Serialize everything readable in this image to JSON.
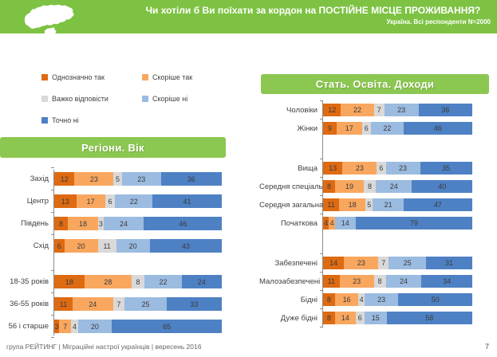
{
  "header": {
    "title": "Чи хотіли б Ви поїхати за кордон на ПОСТІЙНЕ МІСЦЕ ПРОЖИВАННЯ?",
    "subtitle": "Україна. Всі респонденти N=2000"
  },
  "colors": {
    "header_green": "#7DC242",
    "section_green": "#8CC751",
    "series": [
      "#DE6A12",
      "#F9A75F",
      "#D9D9D9",
      "#9BBBE0",
      "#4E81C4"
    ]
  },
  "legend": {
    "keys": [
      "definitely-yes",
      "rather-yes",
      "hard-to-say",
      "rather-no",
      "definitely-no"
    ],
    "items": [
      {
        "label": "Однозначно так"
      },
      {
        "label": "Скоріше так"
      },
      {
        "label": "Важко відповісти"
      },
      {
        "label": "Скоріше ні"
      },
      {
        "label": "Точно ні"
      }
    ]
  },
  "sections": {
    "left": "Регіони. Вік",
    "right": "Стать. Освіта. Доходи"
  },
  "chart_data": [
    {
      "type": "bar",
      "orientation": "horizontal",
      "stacked": true,
      "title": "Регіони. Вік",
      "unit": "%",
      "xlim": [
        0,
        100
      ],
      "series_names": [
        "Однозначно так",
        "Скоріше так",
        "Важко відповісти",
        "Скоріше ні",
        "Точно ні"
      ],
      "groups": [
        {
          "categories": [
            "Захід",
            "Центр",
            "Південь",
            "Схід"
          ],
          "values": [
            [
              12,
              23,
              5,
              23,
              36
            ],
            [
              13,
              17,
              6,
              22,
              41
            ],
            [
              8,
              18,
              3,
              24,
              46
            ],
            [
              6,
              20,
              11,
              20,
              43
            ]
          ]
        },
        {
          "categories": [
            "18-35 років",
            "36-55 років",
            "56 і старше"
          ],
          "values": [
            [
              18,
              28,
              8,
              22,
              24
            ],
            [
              11,
              24,
              7,
              25,
              33
            ],
            [
              3,
              7,
              4,
              20,
              65
            ]
          ]
        }
      ]
    },
    {
      "type": "bar",
      "orientation": "horizontal",
      "stacked": true,
      "title": "Стать. Освіта. Доходи",
      "unit": "%",
      "xlim": [
        0,
        100
      ],
      "series_names": [
        "Однозначно так",
        "Скоріше так",
        "Важко відповісти",
        "Скоріше ні",
        "Точно ні"
      ],
      "groups": [
        {
          "categories": [
            "Чоловіки",
            "Жінки"
          ],
          "values": [
            [
              12,
              22,
              7,
              23,
              36
            ],
            [
              9,
              17,
              6,
              22,
              46
            ]
          ]
        },
        {
          "categories": [
            "Вища",
            "Середня спеціальна",
            "Середня загальна",
            "Початкова"
          ],
          "values": [
            [
              13,
              23,
              6,
              23,
              35
            ],
            [
              8,
              19,
              8,
              24,
              40
            ],
            [
              11,
              18,
              5,
              21,
              47
            ],
            [
              4,
              4,
              0,
              14,
              79
            ]
          ]
        },
        {
          "categories": [
            "Забезпечені",
            "Малозабезпечені",
            "Бідні",
            "Дуже бідні"
          ],
          "values": [
            [
              14,
              23,
              7,
              25,
              31
            ],
            [
              11,
              23,
              8,
              24,
              34
            ],
            [
              8,
              16,
              4,
              23,
              50
            ],
            [
              8,
              14,
              6,
              15,
              58
            ]
          ]
        }
      ]
    }
  ],
  "footer": {
    "source": "група РЕЙТИНГ  |  Міграційні настрої українців  |  вересень 2016",
    "page": "7"
  }
}
